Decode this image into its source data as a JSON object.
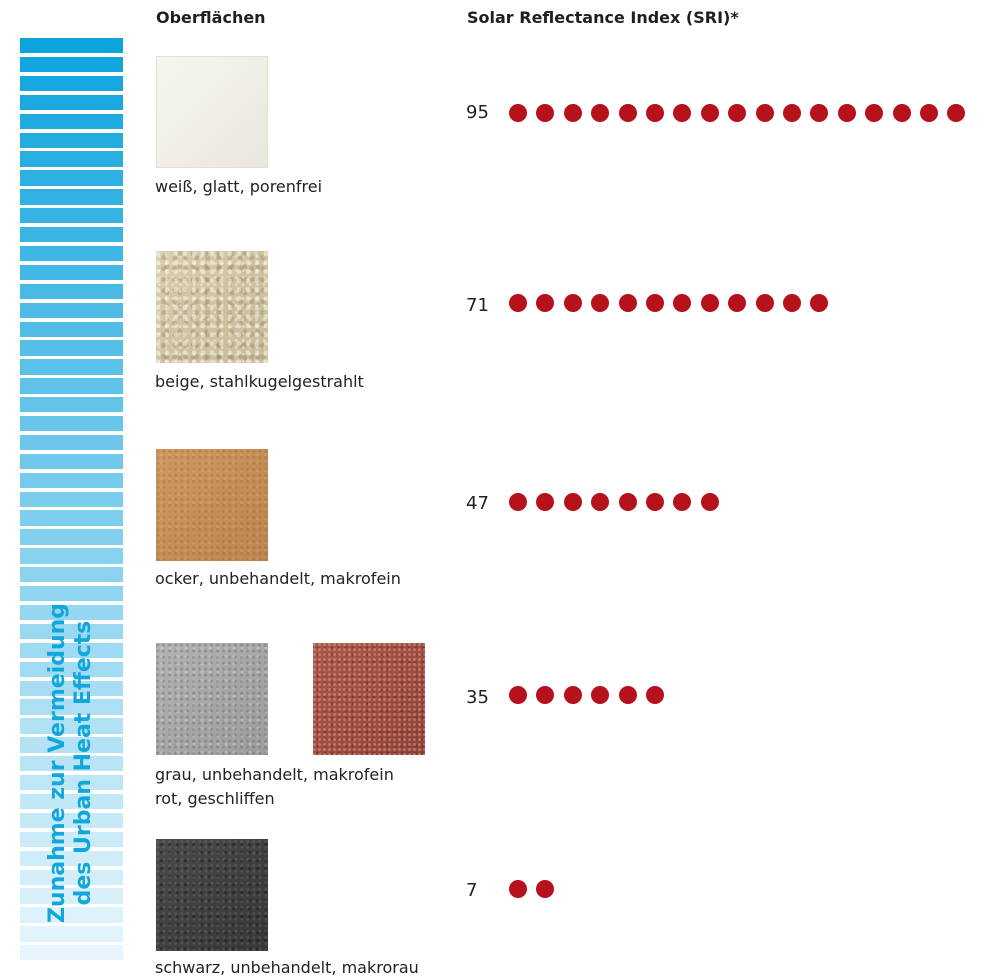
{
  "headers": {
    "surfaces": "Oberflächen",
    "sri": "Solar Reflectance Index (SRI)*"
  },
  "side_bar": {
    "label_line1": "Zunahme zur Vermeidung",
    "label_line2": "des Urban Heat Effects",
    "color_top": "#0da4dd",
    "color_bottom": "#e6f5fc",
    "label_color": "#12a7dc"
  },
  "dot_color": "#b5121b",
  "rows": [
    {
      "caption": "weiß, glatt, porenfrei",
      "value_label": "95"
    },
    {
      "caption": "beige, stahlkugelgestrahlt",
      "value_label": "71"
    },
    {
      "caption": "ocker, unbehandelt, makrofein",
      "value_label": "47"
    },
    {
      "caption": "grau, unbehandelt, makrofein",
      "caption2": "rot, geschliffen",
      "value_label": "35"
    },
    {
      "caption": "schwarz, unbehandelt, makrorau",
      "value_label": "7"
    }
  ],
  "chart_data": {
    "type": "bar",
    "title": "Solar Reflectance Index (SRI)*",
    "categories": [
      "weiß, glatt, porenfrei",
      "beige, stahlkugelgestrahlt",
      "ocker, unbehandelt, makrofein",
      "grau, unbehandelt, makrofein / rot, geschliffen",
      "schwarz, unbehandelt, makrorau"
    ],
    "values": [
      95,
      71,
      47,
      35,
      7
    ],
    "dot_counts": [
      17,
      12,
      8,
      6,
      2
    ],
    "orientation": "horizontal",
    "marker": "dot",
    "xlabel": "",
    "ylabel": "Oberflächen"
  }
}
